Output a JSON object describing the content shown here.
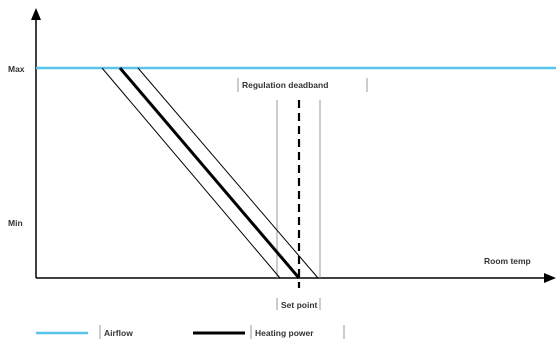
{
  "axes": {
    "y_max_label": "Max",
    "y_min_label": "Min",
    "x_label": "Room temp"
  },
  "annotations": {
    "deadband_label": "Regulation deadband",
    "setpoint_label": "Set point"
  },
  "legend": {
    "airflow_label": "Airflow",
    "heating_label": "Heating power"
  },
  "colors": {
    "airflow": "#5bc4ea",
    "heating": "#000000",
    "axis": "#000000",
    "guide": "#999999"
  }
}
